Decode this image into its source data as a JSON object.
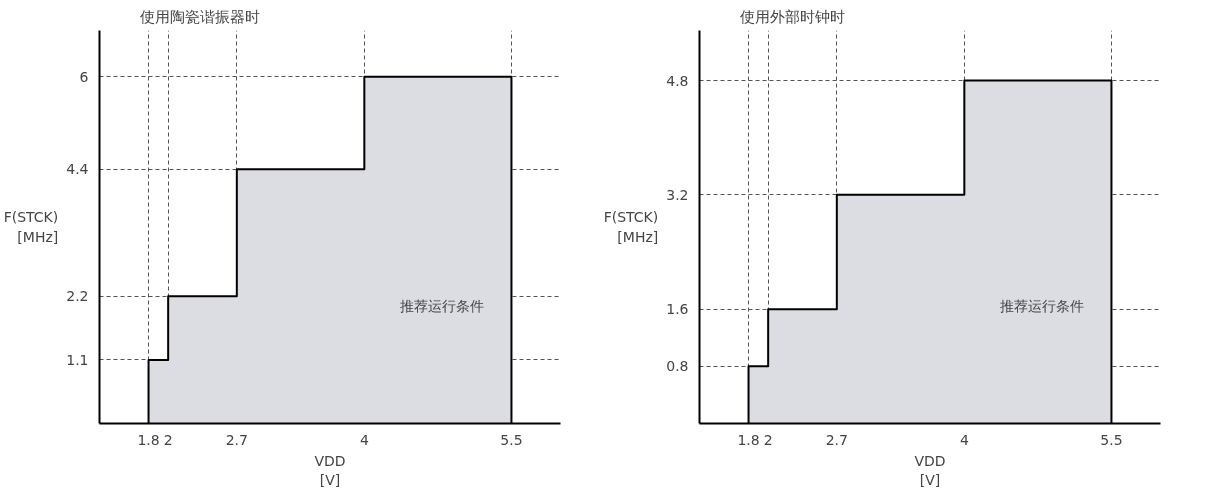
{
  "chart_data": [
    {
      "type": "area",
      "title": "使用陶瓷谐振器时",
      "xlabel": "VDD\n[V]",
      "ylabel": "F(STCK)\n[MHz]",
      "x": [
        1.8,
        2,
        2.7,
        4,
        5.5
      ],
      "series": [
        {
          "color": "#dcdde3",
          "values": [
            1.1,
            2.2,
            4.4,
            6,
            6
          ]
        }
      ],
      "xlim": [
        1.3,
        6.0
      ],
      "xticks": [
        1.8,
        2,
        2.7,
        4,
        5.5
      ],
      "ylim": [
        0,
        6.8
      ],
      "yticks": [
        1.1,
        2.2,
        4.4,
        6
      ],
      "grid": true,
      "annotations": [
        "推荐运行条件"
      ]
    },
    {
      "type": "area",
      "title": "使用外部时钟时",
      "xlabel": "VDD\n[V]",
      "ylabel": "F(STCK)\n[MHz]",
      "x": [
        1.8,
        2,
        2.7,
        4,
        5.5
      ],
      "series": [
        {
          "color": "#dcdde3",
          "values": [
            0.8,
            1.6,
            3.2,
            4.8,
            4.8
          ]
        }
      ],
      "xlim": [
        1.3,
        6.0
      ],
      "xticks": [
        1.8,
        2,
        2.7,
        4,
        5.5
      ],
      "ylim": [
        0,
        5.5
      ],
      "yticks": [
        0.8,
        1.6,
        3.2,
        4.8
      ],
      "grid": true,
      "annotations": [
        "推荐运行条件"
      ]
    }
  ]
}
